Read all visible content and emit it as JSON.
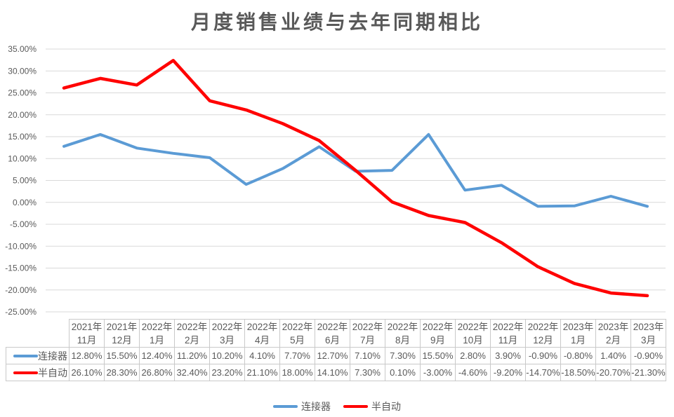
{
  "title": "月度销售业绩与去年同期相比",
  "colors": {
    "title_text": "#595959",
    "axis_text": "#595959",
    "table_text": "#595959",
    "grid": "#d9d9d9",
    "table_border": "#c9c9c9",
    "background": "#ffffff",
    "series_connector_blue": "#5B9BD5",
    "series_semi_auto_red": "#FF0000"
  },
  "chart_data": {
    "type": "line",
    "title": "月度销售业绩与去年同期相比",
    "categories": [
      "2021年11月",
      "2021年12月",
      "2022年1月",
      "2022年2月",
      "2022年3月",
      "2022年4月",
      "2022年5月",
      "2022年6月",
      "2022年7月",
      "2022年8月",
      "2022年9月",
      "2022年10月",
      "2022年11月",
      "2022年12月",
      "2023年1月",
      "2023年2月",
      "2023年3月"
    ],
    "series": [
      {
        "name": "连接器",
        "color": "#5B9BD5",
        "stroke_width": 4,
        "values": [
          12.8,
          15.5,
          12.4,
          11.2,
          10.2,
          4.1,
          7.7,
          12.7,
          7.1,
          7.3,
          15.5,
          2.8,
          3.9,
          -0.9,
          -0.8,
          1.4,
          -0.9
        ],
        "labels": [
          "12.80%",
          "15.50%",
          "12.40%",
          "11.20%",
          "10.20%",
          "4.10%",
          "7.70%",
          "12.70%",
          "7.10%",
          "7.30%",
          "15.50%",
          "2.80%",
          "3.90%",
          "-0.90%",
          "-0.80%",
          "1.40%",
          "-0.90%"
        ]
      },
      {
        "name": "半自动",
        "color": "#FF0000",
        "stroke_width": 4.5,
        "values": [
          26.1,
          28.3,
          26.8,
          32.4,
          23.2,
          21.1,
          18.0,
          14.1,
          7.3,
          0.1,
          -3.0,
          -4.6,
          -9.2,
          -14.7,
          -18.5,
          -20.7,
          -21.3
        ],
        "labels": [
          "26.10%",
          "28.30%",
          "26.80%",
          "32.40%",
          "23.20%",
          "21.10%",
          "18.00%",
          "14.10%",
          "7.30%",
          "0.10%",
          "-3.00%",
          "-4.60%",
          "-9.20%",
          "-14.70%",
          "-18.50%",
          "-20.70%",
          "-21.30%"
        ]
      }
    ],
    "ylim": [
      -25,
      35
    ],
    "ytick_step": 5,
    "ytick_labels": [
      "35.00%",
      "30.00%",
      "25.00%",
      "20.00%",
      "15.00%",
      "10.00%",
      "5.00%",
      "0.00%",
      "-5.00%",
      "-10.00%",
      "-15.00%",
      "-20.00%",
      "-25.00%"
    ],
    "xlabel": "",
    "ylabel": "",
    "grid": true,
    "legend_position": "bottom"
  }
}
